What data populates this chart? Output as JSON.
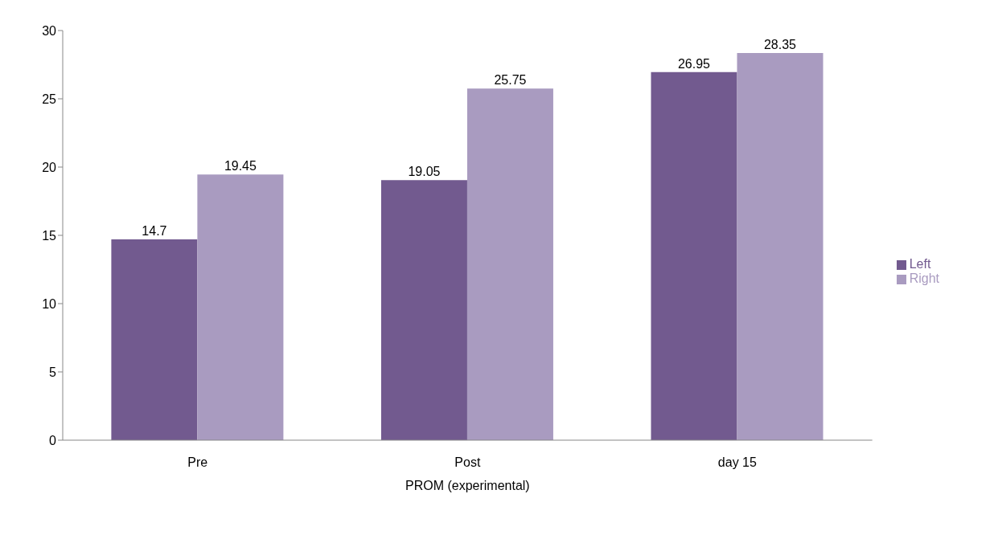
{
  "chart_data": {
    "type": "bar",
    "xlabel": "PROM (experimental)",
    "categories": [
      "Pre",
      "Post",
      "day 15"
    ],
    "series": [
      {
        "name": "Left",
        "color": "#725a8f",
        "values": [
          14.7,
          19.05,
          26.95
        ]
      },
      {
        "name": "Right",
        "color": "#a99bc0",
        "values": [
          19.45,
          25.75,
          28.35
        ]
      }
    ],
    "ylim": [
      0,
      30
    ],
    "yticks": [
      0,
      5,
      10,
      15,
      20,
      25,
      30
    ],
    "data_labels": true,
    "legend": "right",
    "grid": false
  }
}
